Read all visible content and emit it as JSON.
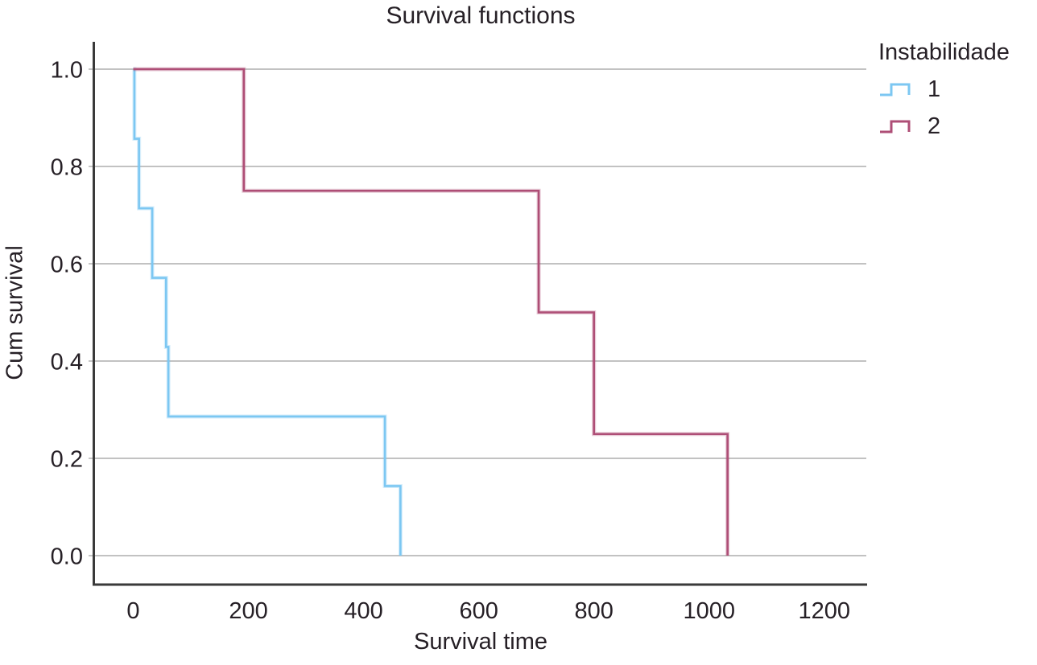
{
  "chart_data": {
    "type": "line",
    "subtype": "kaplan-meier-step",
    "title": "Survival functions",
    "xlabel": "Survival time",
    "ylabel": "Cum survival",
    "xlim": [
      0,
      1200
    ],
    "ylim": [
      0.0,
      1.0
    ],
    "xticks": [
      0,
      200,
      400,
      600,
      800,
      1000,
      1200
    ],
    "yticks": [
      0.0,
      0.2,
      0.4,
      0.6,
      0.8,
      1.0
    ],
    "ytick_labels": [
      "0.0",
      "0.2",
      "0.4",
      "0.6",
      "0.8",
      "1.0"
    ],
    "grid": "horizontal-only",
    "legend": {
      "title": "Instabilidade",
      "position": "top-right",
      "entries": [
        "1",
        "2"
      ]
    },
    "series": [
      {
        "name": "1",
        "color": "#7CC7F2",
        "steps": [
          [
            0,
            1.0
          ],
          [
            2,
            0.857
          ],
          [
            10,
            0.714
          ],
          [
            33,
            0.571
          ],
          [
            57,
            0.429
          ],
          [
            61,
            0.286
          ],
          [
            437,
            0.143
          ],
          [
            464,
            0.0
          ]
        ]
      },
      {
        "name": "2",
        "color": "#AE4E76",
        "steps": [
          [
            0,
            1.0
          ],
          [
            192,
            0.75
          ],
          [
            704,
            0.5
          ],
          [
            800,
            0.25
          ],
          [
            1032,
            0.0
          ]
        ]
      }
    ],
    "colors": {
      "group1_line": "#7CC7F2",
      "group2_line": "#AE4E76",
      "gridline": "#ADADAD",
      "axis_line": "#3A3A3A",
      "text": "#262026"
    }
  }
}
